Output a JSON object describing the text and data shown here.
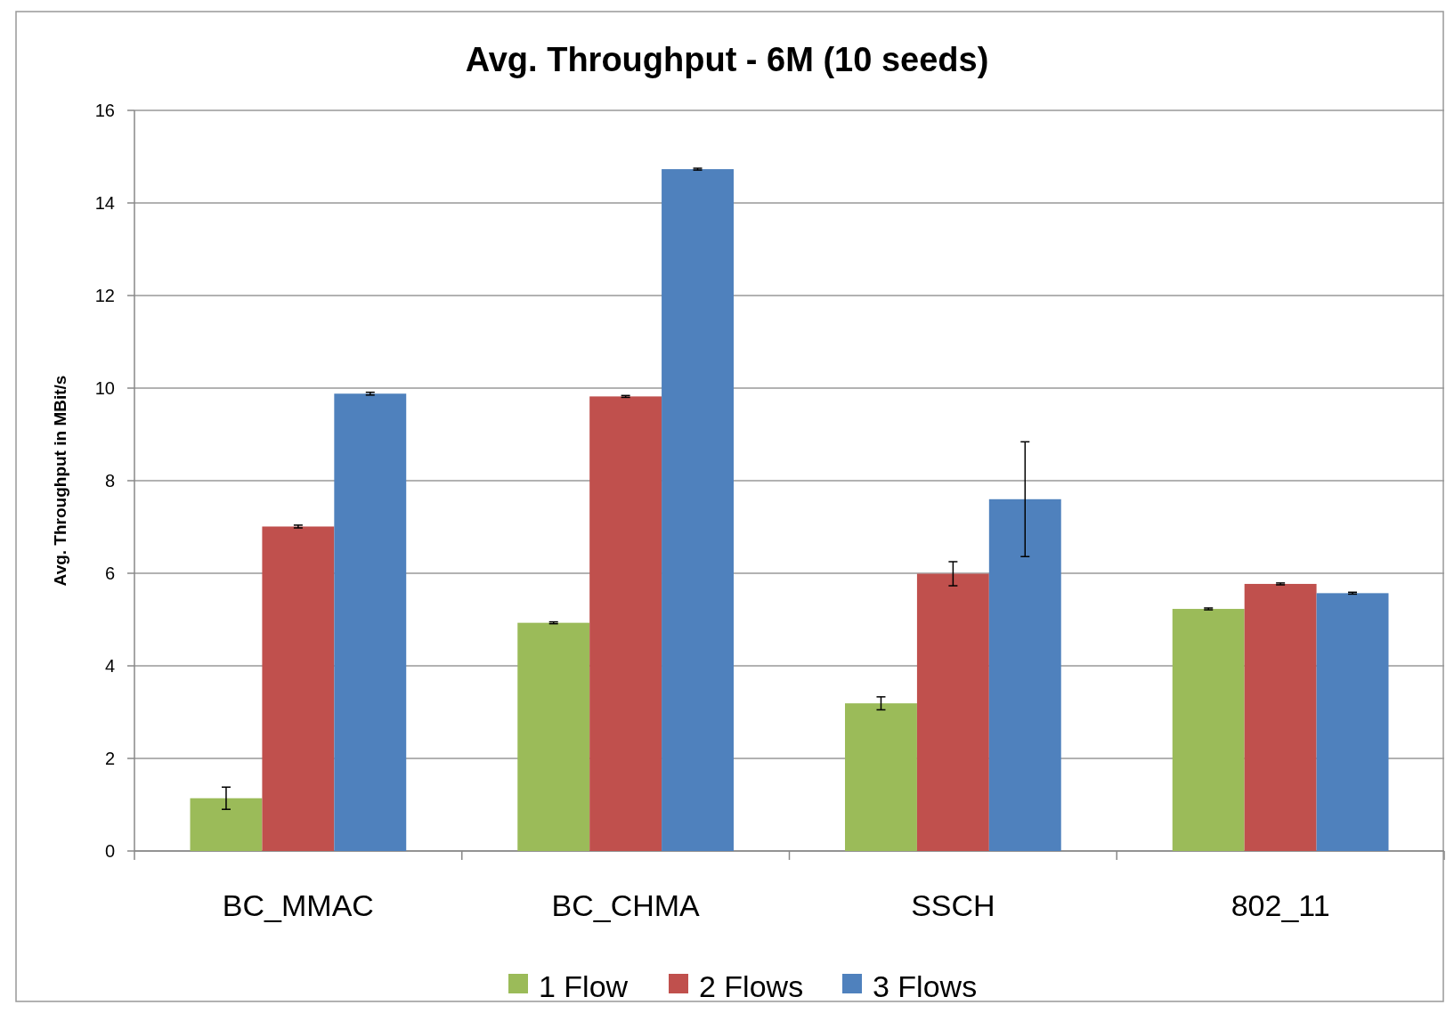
{
  "chart_data": {
    "type": "bar",
    "title": "Avg. Throughput - 6M (10 seeds)",
    "ylabel": "Avg. Throughput in MBit/s",
    "categories": [
      "BC_MMAC",
      "BC_CHMA",
      "SSCH",
      "802_11"
    ],
    "series": [
      {
        "name": "1 Flow",
        "color": "#9bbb59",
        "values": [
          1.14,
          4.93,
          3.19,
          5.23
        ],
        "errors": [
          0.24,
          0.02,
          0.14,
          0.02
        ]
      },
      {
        "name": "2 Flows",
        "color": "#c0504d",
        "values": [
          7.01,
          9.82,
          5.99,
          5.77
        ],
        "errors": [
          0.03,
          0.02,
          0.26,
          0.02
        ]
      },
      {
        "name": "3 Flows",
        "color": "#4f81bd",
        "values": [
          9.88,
          14.73,
          7.6,
          5.57
        ],
        "errors": [
          0.03,
          0.02,
          1.24,
          0.02
        ]
      }
    ],
    "ylim": [
      0,
      16
    ],
    "yticks": [
      0,
      2,
      4,
      6,
      8,
      10,
      12,
      14,
      16
    ],
    "grid": "y",
    "legend": "bottom"
  }
}
